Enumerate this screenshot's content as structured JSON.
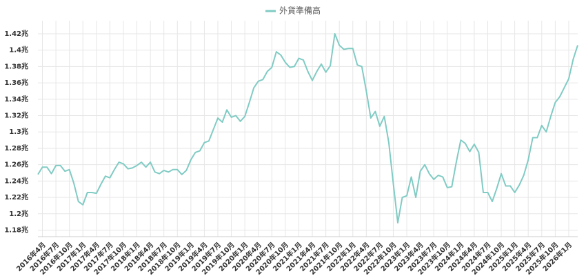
{
  "chart_data": {
    "type": "line",
    "categories": [
      null,
      "2016年4月",
      null,
      null,
      "2016年7月",
      null,
      null,
      "2016年10月",
      null,
      null,
      "2017年1月",
      null,
      null,
      "2017年4月",
      null,
      null,
      "2017年7月",
      null,
      null,
      "2017年10月",
      null,
      null,
      "2018年1月",
      null,
      null,
      "2018年4月",
      null,
      null,
      "2018年7月",
      null,
      null,
      "2018年10月",
      null,
      null,
      "2019年1月",
      null,
      null,
      "2019年4月",
      null,
      null,
      "2019年7月",
      null,
      null,
      "2019年10月",
      null,
      null,
      "2020年1月",
      null,
      null,
      "2020年4月",
      null,
      null,
      "2020年7月",
      null,
      null,
      "2020年10月",
      null,
      null,
      "2021年1月",
      null,
      null,
      "2021年4月",
      null,
      null,
      "2021年7月",
      null,
      null,
      "2021年10月",
      null,
      null,
      "2022年1月",
      null,
      null,
      "2022年4月",
      null,
      null,
      "2022年7月",
      null,
      null,
      "2022年10月",
      null,
      null,
      "2023年1月",
      null,
      null,
      "2023年4月",
      null,
      null,
      "2023年7月",
      null,
      null,
      "2023年10月",
      null,
      null,
      "2024年1月",
      null,
      null,
      "2024年4月",
      null,
      null,
      "2024年7月",
      null,
      null,
      "2024年10月",
      null,
      null,
      "2025年1月",
      null,
      null,
      "2025年4月",
      null,
      null,
      "2025年7月",
      null,
      null,
      "2025年10月",
      null,
      null,
      "2026年1月",
      null,
      null
    ],
    "series": [
      {
        "name": "外貨準備高",
        "color": "#80cbc4",
        "values": [
          1.248,
          1.257,
          1.257,
          1.249,
          1.259,
          1.259,
          1.252,
          1.254,
          1.237,
          1.215,
          1.211,
          1.226,
          1.226,
          1.225,
          1.236,
          1.246,
          1.244,
          1.254,
          1.263,
          1.261,
          1.255,
          1.256,
          1.259,
          1.263,
          1.257,
          1.263,
          1.251,
          1.249,
          1.253,
          1.251,
          1.254,
          1.254,
          1.248,
          1.253,
          1.266,
          1.275,
          1.277,
          1.287,
          1.289,
          1.303,
          1.317,
          1.312,
          1.327,
          1.318,
          1.32,
          1.313,
          1.319,
          1.336,
          1.354,
          1.362,
          1.364,
          1.374,
          1.379,
          1.398,
          1.394,
          1.385,
          1.379,
          1.38,
          1.39,
          1.388,
          1.374,
          1.363,
          1.374,
          1.383,
          1.373,
          1.381,
          1.42,
          1.406,
          1.401,
          1.402,
          1.402,
          1.382,
          1.38,
          1.35,
          1.317,
          1.325,
          1.307,
          1.319,
          1.287,
          1.237,
          1.189,
          1.22,
          1.222,
          1.245,
          1.22,
          1.252,
          1.26,
          1.249,
          1.242,
          1.247,
          1.245,
          1.232,
          1.233,
          1.263,
          1.29,
          1.286,
          1.276,
          1.285,
          1.275,
          1.226,
          1.226,
          1.215,
          1.231,
          1.249,
          1.234,
          1.234,
          1.226,
          1.235,
          1.247,
          1.266,
          1.293,
          1.293,
          1.308,
          1.3,
          1.319,
          1.336,
          1.343,
          1.354,
          1.365,
          1.389,
          1.406
        ]
      }
    ],
    "ylim": [
      1.172,
      1.436
    ],
    "yticks": [
      {
        "value": 1.18,
        "label": "1.18兆"
      },
      {
        "value": 1.2,
        "label": "1.2兆"
      },
      {
        "value": 1.22,
        "label": "1.22兆"
      },
      {
        "value": 1.24,
        "label": "1.24兆"
      },
      {
        "value": 1.26,
        "label": "1.26兆"
      },
      {
        "value": 1.28,
        "label": "1.28兆"
      },
      {
        "value": 1.3,
        "label": "1.3兆"
      },
      {
        "value": 1.32,
        "label": "1.32兆"
      },
      {
        "value": 1.34,
        "label": "1.34兆"
      },
      {
        "value": 1.36,
        "label": "1.36兆"
      },
      {
        "value": 1.38,
        "label": "1.38兆"
      },
      {
        "value": 1.4,
        "label": "1.4兆"
      },
      {
        "value": 1.42,
        "label": "1.42兆"
      }
    ],
    "grid": true,
    "legend": "top"
  }
}
